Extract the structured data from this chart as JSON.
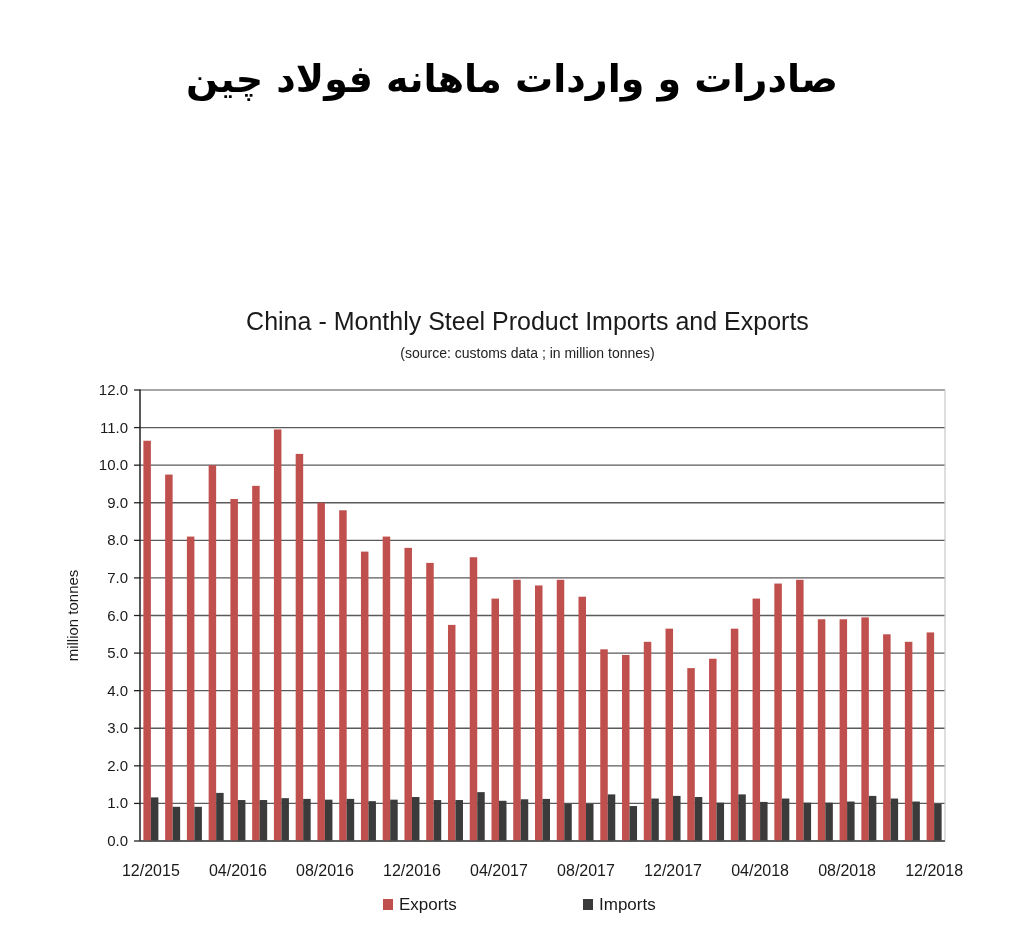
{
  "chart_data": {
    "type": "bar",
    "title": "صادرات و واردات ماهانه فولاد چین",
    "subtitle": "China - Monthly Steel Product Imports and Exports",
    "annotations": [
      "(source: customs data ; in million tonnes)"
    ],
    "ylabel": "million tonnes",
    "categories": [
      "12/2015",
      null,
      null,
      null,
      "04/2016",
      null,
      null,
      null,
      "08/2016",
      null,
      null,
      null,
      "12/2016",
      null,
      null,
      null,
      "04/2017",
      null,
      null,
      null,
      "08/2017",
      null,
      null,
      null,
      "12/2017",
      null,
      null,
      null,
      "04/2018",
      null,
      null,
      null,
      "08/2018",
      null,
      null,
      null,
      "12/2018"
    ],
    "series": [
      {
        "name": "Exports",
        "color": "#c0504d",
        "values": [
          10.65,
          9.75,
          8.1,
          10.0,
          9.1,
          9.45,
          10.95,
          10.3,
          9.0,
          8.8,
          7.7,
          8.1,
          7.8,
          7.4,
          5.75,
          7.55,
          6.45,
          6.95,
          6.8,
          6.95,
          6.5,
          5.1,
          4.95,
          5.3,
          5.65,
          4.6,
          4.85,
          5.65,
          6.45,
          6.85,
          6.95,
          5.9,
          5.9,
          5.95,
          5.5,
          5.3,
          5.55
        ]
      },
      {
        "name": "Imports",
        "color": "#3b3b3b",
        "values": [
          1.16,
          0.91,
          0.91,
          1.28,
          1.09,
          1.09,
          1.14,
          1.12,
          1.1,
          1.12,
          1.06,
          1.1,
          1.17,
          1.09,
          1.09,
          1.3,
          1.07,
          1.11,
          1.12,
          0.99,
          0.99,
          1.24,
          0.93,
          1.13,
          1.2,
          1.17,
          1.02,
          1.24,
          1.04,
          1.13,
          1.02,
          1.02,
          1.05,
          1.2,
          1.13,
          1.05,
          0.99
        ]
      }
    ],
    "ylim": [
      0,
      12
    ],
    "yticks": [
      {
        "value": 0,
        "label": "0.0"
      },
      {
        "value": 1,
        "label": "1.0"
      },
      {
        "value": 2,
        "label": "2.0"
      },
      {
        "value": 3,
        "label": "3.0"
      },
      {
        "value": 4,
        "label": "4.0"
      },
      {
        "value": 5,
        "label": "5.0"
      },
      {
        "value": 6,
        "label": "6.0"
      },
      {
        "value": 7,
        "label": "7.0"
      },
      {
        "value": 8,
        "label": "8.0"
      },
      {
        "value": 9,
        "label": "9.0"
      },
      {
        "value": 10,
        "label": "10.0"
      },
      {
        "value": 11,
        "label": "11.0"
      },
      {
        "value": 12,
        "label": "12.0"
      }
    ],
    "grid": "y",
    "legend": "bottom"
  }
}
